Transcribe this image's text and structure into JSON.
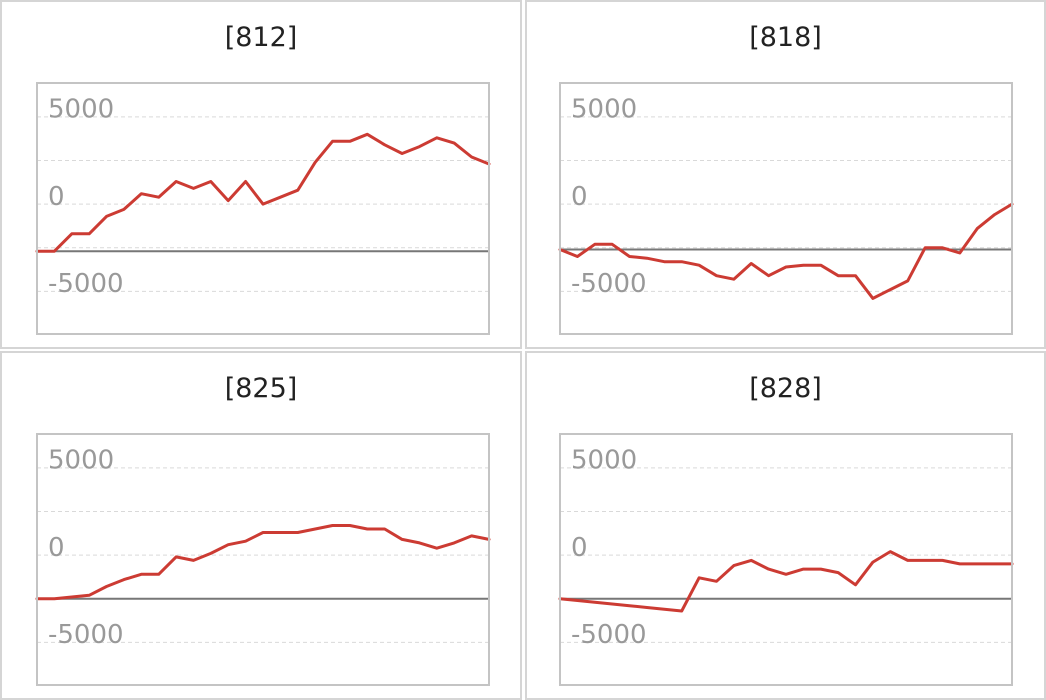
{
  "chart_data": [
    {
      "type": "line",
      "title": "[812]",
      "ylim": [
        -7000,
        7500
      ],
      "yticks": [
        5000,
        0,
        -5000
      ],
      "grid": true,
      "line_color": "#cc3b33",
      "x": [
        0,
        1,
        2,
        3,
        4,
        5,
        6,
        7,
        8,
        9,
        10,
        11,
        12,
        13,
        14,
        15,
        16,
        17,
        18,
        19,
        20,
        21,
        22,
        23,
        24,
        25,
        26
      ],
      "values": [
        -2200,
        -2200,
        -1200,
        -1200,
        -200,
        200,
        1100,
        900,
        1800,
        1400,
        1800,
        700,
        1800,
        500,
        900,
        1300,
        2900,
        4100,
        4100,
        4500,
        3900,
        3400,
        3800,
        4300,
        4000,
        3200,
        2800
      ]
    },
    {
      "type": "line",
      "title": "[818]",
      "ylim": [
        -7000,
        7500
      ],
      "yticks": [
        5000,
        0,
        -5000
      ],
      "grid": true,
      "line_color": "#cc3b33",
      "x": [
        0,
        1,
        2,
        3,
        4,
        5,
        6,
        7,
        8,
        9,
        10,
        11,
        12,
        13,
        14,
        15,
        16,
        17,
        18,
        19,
        20,
        21,
        22,
        23,
        24,
        25,
        26
      ],
      "values": [
        -2100,
        -2500,
        -1800,
        -1800,
        -2500,
        -2600,
        -2800,
        -2800,
        -3000,
        -3600,
        -3800,
        -2900,
        -3600,
        -3100,
        -3000,
        -3000,
        -3600,
        -3600,
        -4900,
        -4400,
        -3900,
        -2000,
        -2000,
        -2300,
        -900,
        -100,
        500
      ]
    },
    {
      "type": "line",
      "title": "[825]",
      "ylim": [
        -7000,
        7500
      ],
      "yticks": [
        5000,
        0,
        -5000
      ],
      "grid": true,
      "line_color": "#cc3b33",
      "x": [
        0,
        1,
        2,
        3,
        4,
        5,
        6,
        7,
        8,
        9,
        10,
        11,
        12,
        13,
        14,
        15,
        16,
        17,
        18,
        19,
        20,
        21,
        22,
        23,
        24,
        25,
        26
      ],
      "values": [
        -2000,
        -2000,
        -1900,
        -1800,
        -1300,
        -900,
        -600,
        -600,
        400,
        200,
        600,
        1100,
        1300,
        1800,
        1800,
        1800,
        2000,
        2200,
        2200,
        2000,
        2000,
        1400,
        1200,
        900,
        1200,
        1600,
        1400
      ]
    },
    {
      "type": "line",
      "title": "[828]",
      "ylim": [
        -7000,
        7500
      ],
      "yticks": [
        5000,
        0,
        -5000
      ],
      "grid": true,
      "line_color": "#cc3b33",
      "x": [
        0,
        1,
        2,
        3,
        4,
        5,
        6,
        7,
        8,
        9,
        10,
        11,
        12,
        13,
        14,
        15,
        16,
        17,
        18,
        19,
        20,
        21,
        22,
        23,
        24,
        25,
        26
      ],
      "values": [
        -2000,
        -2100,
        -2200,
        -2300,
        -2400,
        -2500,
        -2600,
        -2700,
        -800,
        -1000,
        -100,
        200,
        -300,
        -600,
        -300,
        -300,
        -500,
        -1200,
        100,
        700,
        200,
        200,
        200,
        0,
        0,
        0,
        0
      ]
    }
  ]
}
